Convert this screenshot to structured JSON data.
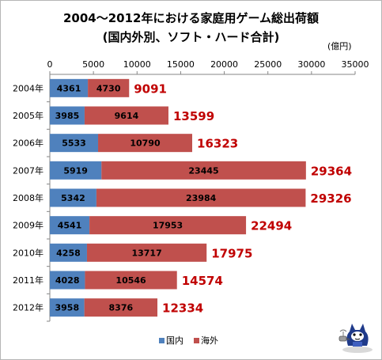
{
  "title": {
    "line1": "2004〜2012年における家庭用ゲーム総出荷額",
    "line2": "(国内外別、ソフト・ハード合計)"
  },
  "unit_label": "(億円)",
  "colors": {
    "domestic": "#4f81bd",
    "overseas": "#c0504d",
    "total_label": "#c00000"
  },
  "chart_data": {
    "type": "bar",
    "orientation": "horizontal",
    "stacked": true,
    "categories": [
      "2004年",
      "2005年",
      "2006年",
      "2007年",
      "2008年",
      "2009年",
      "2010年",
      "2011年",
      "2012年"
    ],
    "series": [
      {
        "name": "国内",
        "values": [
          4361,
          3985,
          5533,
          5919,
          5342,
          4541,
          4258,
          4028,
          3958
        ]
      },
      {
        "name": "海外",
        "values": [
          4730,
          9614,
          10790,
          23445,
          23984,
          17953,
          13717,
          10546,
          8376
        ]
      }
    ],
    "totals": [
      9091,
      13599,
      16323,
      29364,
      29326,
      22494,
      17975,
      14574,
      12334
    ],
    "xlim": [
      0,
      35000
    ],
    "xticks": [
      0,
      5000,
      10000,
      15000,
      20000,
      25000,
      30000,
      35000
    ],
    "axis_position": "top",
    "legend_position": "bottom",
    "grid": false
  },
  "legend": [
    {
      "label": "国内",
      "color": "#4f81bd"
    },
    {
      "label": "海外",
      "color": "#c0504d"
    }
  ],
  "mascot_icon": "cat-mascot-icon"
}
